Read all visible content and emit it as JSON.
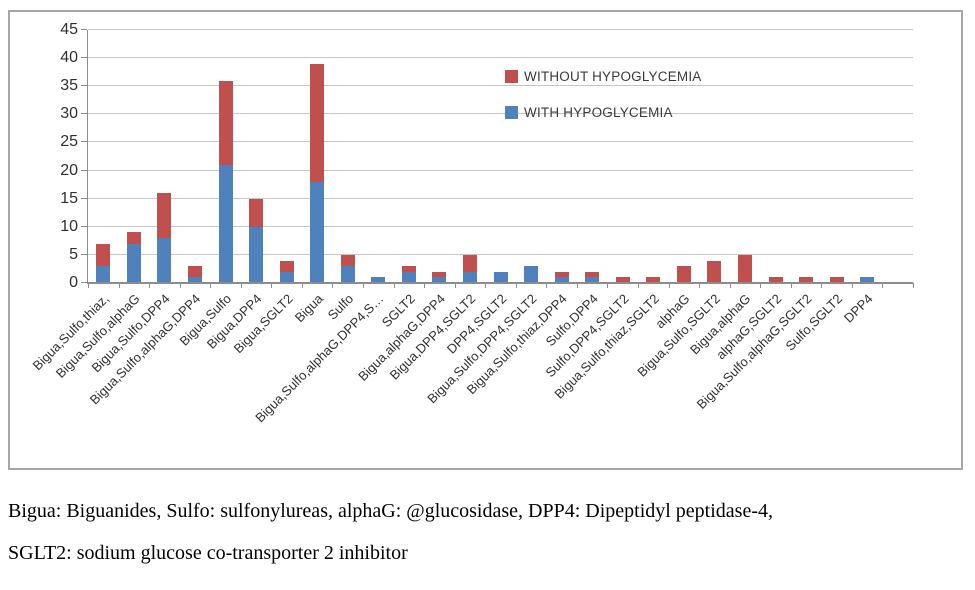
{
  "chart_data": {
    "type": "bar",
    "stacked": true,
    "title": "",
    "xlabel": "",
    "ylabel": "",
    "categories": [
      "Bigua,Sulfo,thiaz,",
      "Bigua,Sulfo,alphaG",
      "Bigua,Sulfo,DPP4",
      "Bigua,Sulfo,alphaG,DPP4",
      "Bigua,Sulfo",
      "Bigua,DPP4",
      "Bigua,SGLT2",
      "Bigua",
      "Sulfo",
      "Bigua,Sulfo,alphaG,DPP4,S…",
      "SGLT2",
      "Bigua,alphaG,DPP4",
      "Bigua,DPP4,SGLT2",
      "DPP4,SGLT2",
      "Bigua,Sulfo,DPP4,SGLT2",
      "Bigua,Sulfo,thiaz,DPP4",
      "Sulfo,DPP4",
      "Sulfo,DPP4,SGLT2",
      "Bigua,Sulfo,thiaz,SGLT2",
      "alphaG",
      "Bigua,Sulfo,SGLT2",
      "Bigua,alphaG",
      "alphaG,SGLT2",
      "Bigua,Sulfo,alphaG,SGLT2",
      "Sulfo,SGLT2",
      "DPP4"
    ],
    "series": [
      {
        "name": "WITH HYPOGLYCEMIA",
        "color": "#4F81BD",
        "values": [
          3,
          7,
          8,
          1,
          21,
          10,
          2,
          18,
          3,
          1,
          2,
          1,
          2,
          2,
          3,
          1,
          1,
          0,
          0,
          0,
          0,
          0,
          0,
          0,
          0,
          1
        ]
      },
      {
        "name": "WITHOUT HYPOGLYCEMIA",
        "color": "#C0504D",
        "values": [
          4,
          2,
          8,
          2,
          15,
          5,
          2,
          21,
          2,
          0,
          1,
          1,
          3,
          0,
          0,
          1,
          1,
          1,
          1,
          3,
          4,
          5,
          1,
          1,
          1,
          0
        ]
      }
    ],
    "ylim": [
      0,
      45
    ],
    "yticks": [
      0,
      5,
      10,
      15,
      20,
      25,
      30,
      35,
      40,
      45
    ],
    "grid": true,
    "legend_position": "inside-top-right",
    "legend_order": [
      "WITHOUT HYPOGLYCEMIA",
      "WITH HYPOGLYCEMIA"
    ]
  },
  "caption": {
    "line1": "Bigua: Biguanides, Sulfo: sulfonylureas, alphaG: @glucosidase, DPP4: Dipeptidyl peptidase-4,",
    "line2": "SGLT2: sodium glucose co-transporter 2 inhibitor"
  }
}
